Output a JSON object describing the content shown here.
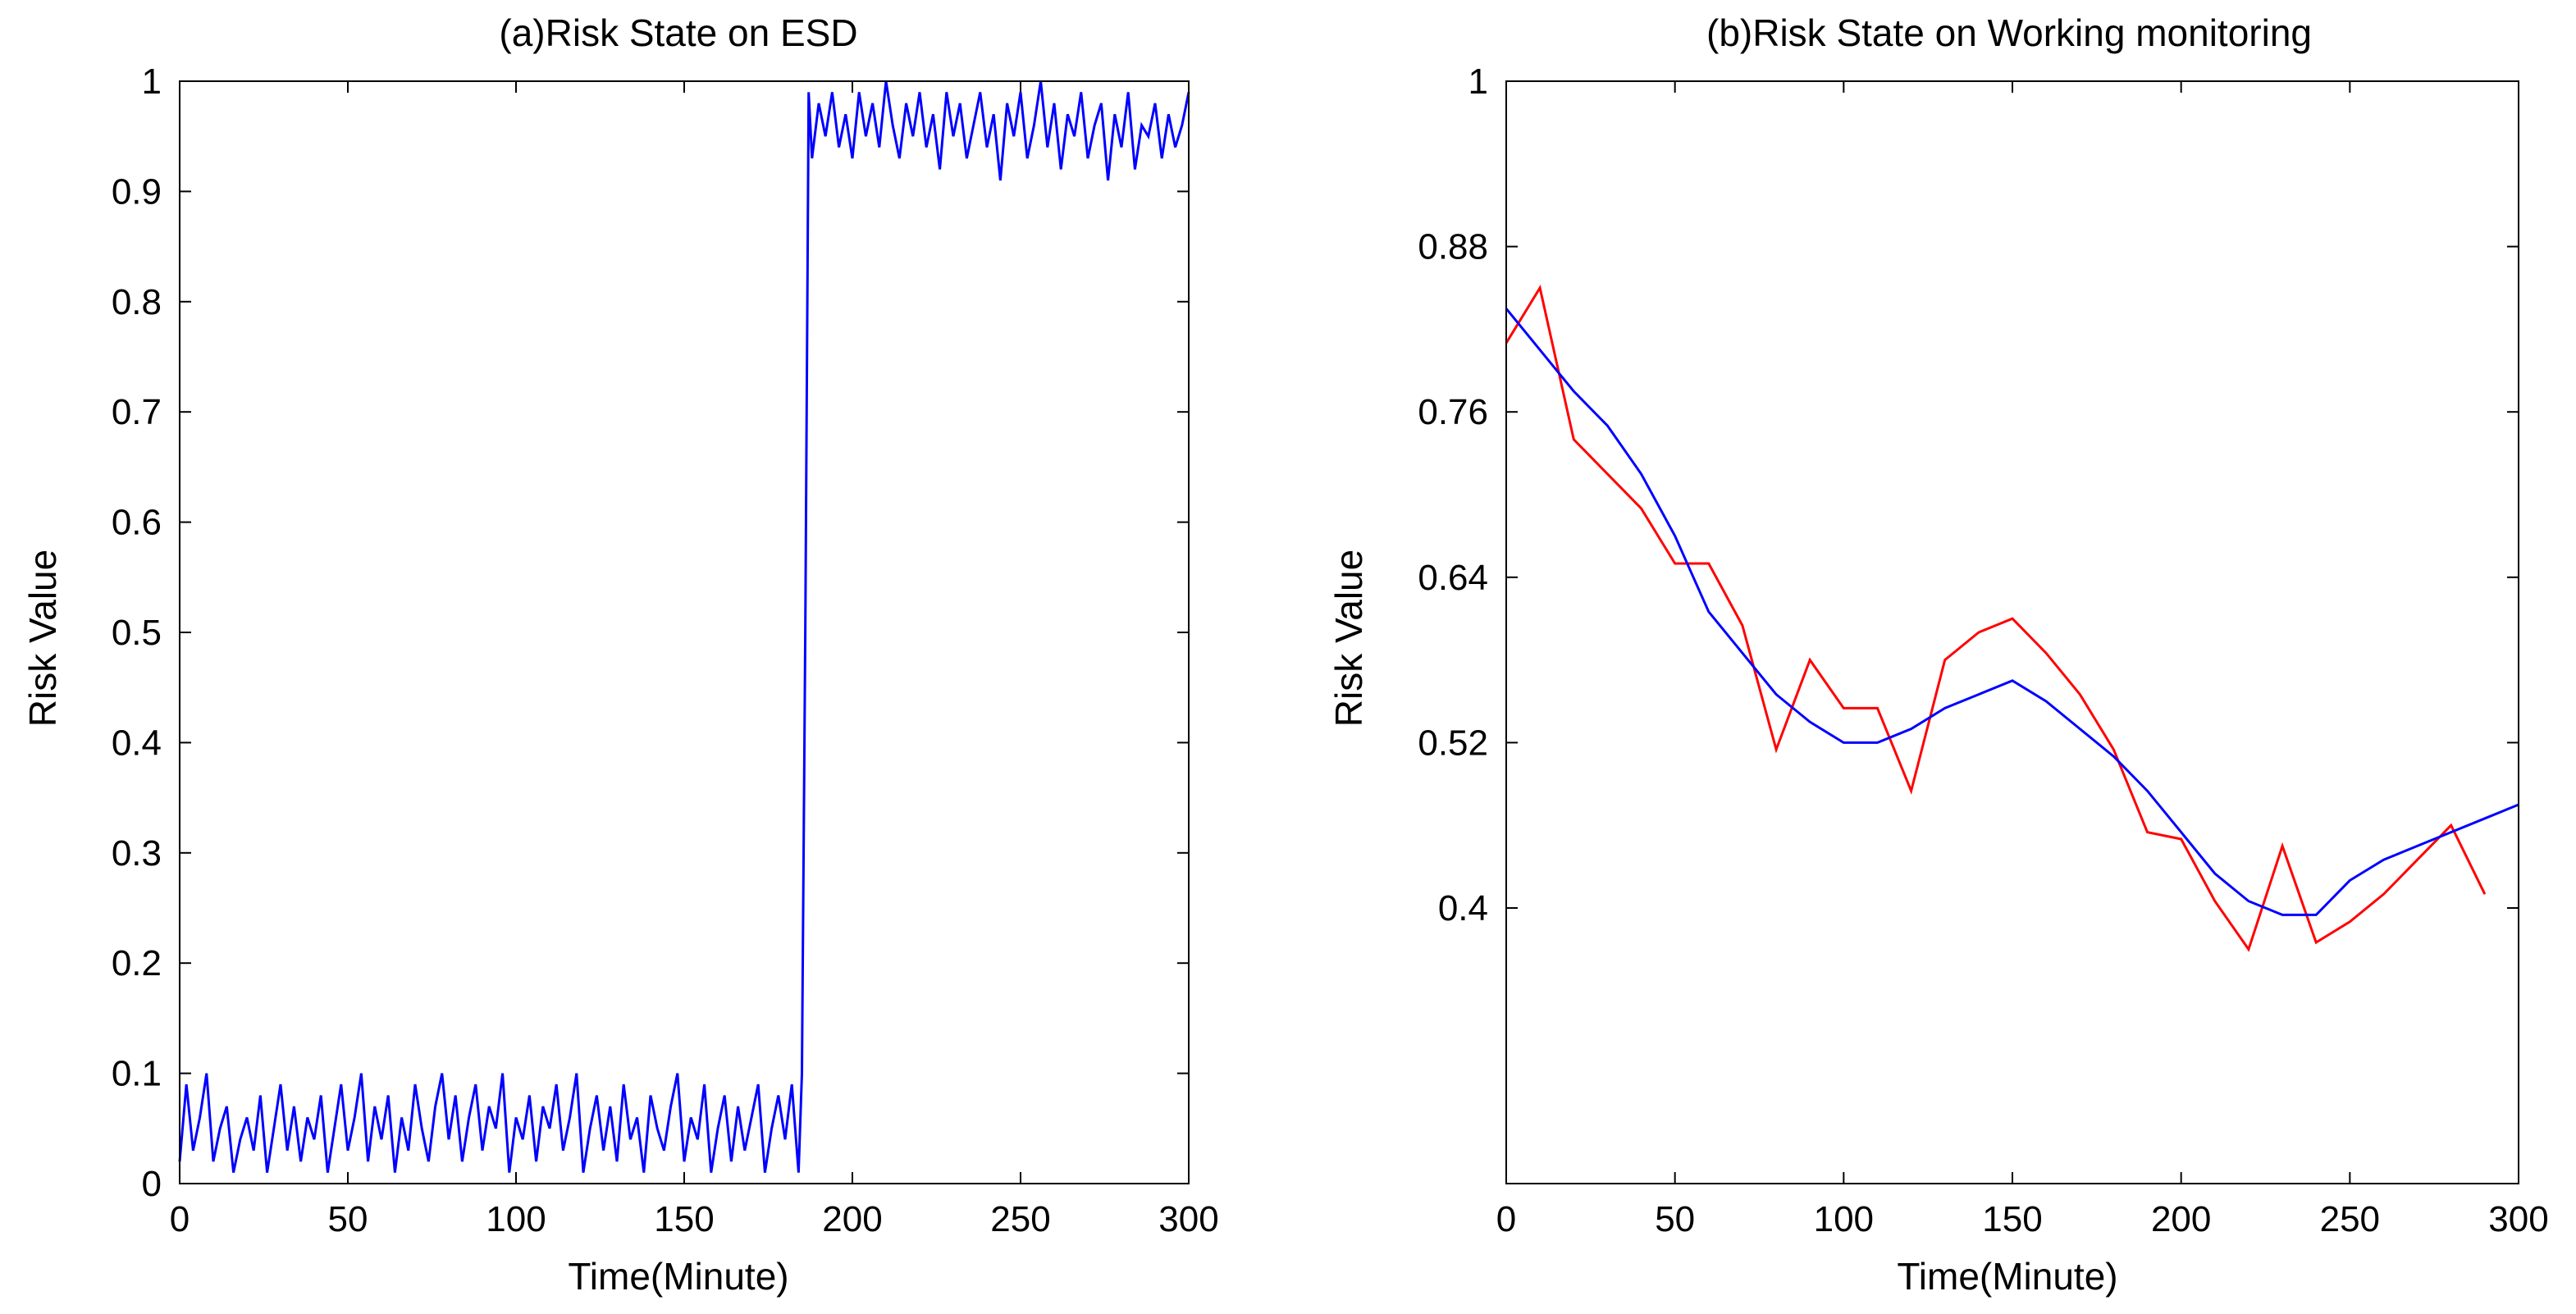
{
  "chart_data": [
    {
      "type": "line",
      "title": "(a)Risk State on ESD",
      "xlabel": "Time(Minute)",
      "ylabel": "Risk Value",
      "xlim": [
        0,
        300
      ],
      "ylim": [
        0,
        1
      ],
      "xticks": [
        0,
        50,
        100,
        150,
        200,
        250,
        300
      ],
      "yticks": [
        0,
        0.1,
        0.2,
        0.3,
        0.4,
        0.5,
        0.6,
        0.7,
        0.8,
        0.9,
        1
      ],
      "xtick_labels": [
        "0",
        "50",
        "100",
        "150",
        "200",
        "250",
        "300"
      ],
      "ytick_labels": [
        "0",
        "0.1",
        "0.2",
        "0.3",
        "0.4",
        "0.5",
        "0.6",
        "0.7",
        "0.8",
        "0.9",
        "1"
      ],
      "grid": false,
      "series": [
        {
          "color": "#0000ff",
          "x": [
            0,
            2,
            4,
            6,
            8,
            10,
            12,
            14,
            16,
            18,
            20,
            22,
            24,
            26,
            28,
            30,
            32,
            34,
            36,
            38,
            40,
            42,
            44,
            46,
            48,
            50,
            52,
            54,
            56,
            58,
            60,
            62,
            64,
            66,
            68,
            70,
            72,
            74,
            76,
            78,
            80,
            82,
            84,
            86,
            88,
            90,
            92,
            94,
            96,
            98,
            100,
            102,
            104,
            106,
            108,
            110,
            112,
            114,
            116,
            118,
            120,
            122,
            124,
            126,
            128,
            130,
            132,
            134,
            136,
            138,
            140,
            142,
            144,
            146,
            148,
            150,
            152,
            154,
            156,
            158,
            160,
            162,
            164,
            166,
            168,
            170,
            172,
            174,
            176,
            178,
            180,
            182,
            184,
            185,
            186,
            187,
            188,
            190,
            192,
            194,
            196,
            198,
            200,
            202,
            204,
            206,
            208,
            210,
            212,
            214,
            216,
            218,
            220,
            222,
            224,
            226,
            228,
            230,
            232,
            234,
            236,
            238,
            240,
            242,
            244,
            246,
            248,
            250,
            252,
            254,
            256,
            258,
            260,
            262,
            264,
            266,
            268,
            270,
            272,
            274,
            276,
            278,
            280,
            282,
            284,
            286,
            288,
            290,
            292,
            294,
            296,
            298,
            300
          ],
          "y": [
            0.02,
            0.09,
            0.03,
            0.06,
            0.1,
            0.02,
            0.05,
            0.07,
            0.01,
            0.04,
            0.06,
            0.03,
            0.08,
            0.01,
            0.05,
            0.09,
            0.03,
            0.07,
            0.02,
            0.06,
            0.04,
            0.08,
            0.01,
            0.05,
            0.09,
            0.03,
            0.06,
            0.1,
            0.02,
            0.07,
            0.04,
            0.08,
            0.01,
            0.06,
            0.03,
            0.09,
            0.05,
            0.02,
            0.07,
            0.1,
            0.04,
            0.08,
            0.02,
            0.06,
            0.09,
            0.03,
            0.07,
            0.05,
            0.1,
            0.01,
            0.06,
            0.04,
            0.08,
            0.02,
            0.07,
            0.05,
            0.09,
            0.03,
            0.06,
            0.1,
            0.01,
            0.05,
            0.08,
            0.03,
            0.07,
            0.02,
            0.09,
            0.04,
            0.06,
            0.01,
            0.08,
            0.05,
            0.03,
            0.07,
            0.1,
            0.02,
            0.06,
            0.04,
            0.09,
            0.01,
            0.05,
            0.08,
            0.02,
            0.07,
            0.03,
            0.06,
            0.09,
            0.01,
            0.05,
            0.08,
            0.04,
            0.09,
            0.01,
            0.1,
            0.5,
            0.99,
            0.93,
            0.98,
            0.95,
            0.99,
            0.94,
            0.97,
            0.93,
            0.99,
            0.95,
            0.98,
            0.94,
            1.0,
            0.96,
            0.93,
            0.98,
            0.95,
            0.99,
            0.94,
            0.97,
            0.92,
            0.99,
            0.95,
            0.98,
            0.93,
            0.96,
            0.99,
            0.94,
            0.97,
            0.91,
            0.98,
            0.95,
            0.99,
            0.93,
            0.96,
            1.0,
            0.94,
            0.98,
            0.92,
            0.97,
            0.95,
            0.99,
            0.93,
            0.96,
            0.98,
            0.91,
            0.97,
            0.94,
            0.99,
            0.92,
            0.96,
            0.95,
            0.98,
            0.93,
            0.97,
            0.94,
            0.96,
            0.99
          ]
        }
      ]
    },
    {
      "type": "line",
      "title": "(b)Risk State on Working monitoring",
      "xlabel": "Time(Minute)",
      "ylabel": "Risk Value",
      "xlim": [
        0,
        300
      ],
      "ylim": [
        0.2,
        1
      ],
      "xticks": [
        0,
        50,
        100,
        150,
        200,
        250,
        300
      ],
      "yticks": [
        0.4,
        0.52,
        0.64,
        0.76,
        0.88,
        1
      ],
      "xtick_labels": [
        "0",
        "50",
        "100",
        "150",
        "200",
        "250",
        "300"
      ],
      "ytick_labels": [
        "0.4",
        "0.52",
        "0.64",
        "0.76",
        "0.88",
        "1"
      ],
      "grid": false,
      "series": [
        {
          "color": "#ff0000",
          "x": [
            0,
            10,
            20,
            30,
            40,
            50,
            60,
            70,
            80,
            90,
            100,
            110,
            120,
            130,
            140,
            150,
            160,
            170,
            180,
            190,
            200,
            210,
            220,
            230,
            240,
            250,
            260,
            270,
            280,
            290
          ],
          "y": [
            0.81,
            0.85,
            0.74,
            0.715,
            0.69,
            0.65,
            0.65,
            0.605,
            0.515,
            0.58,
            0.545,
            0.545,
            0.485,
            0.58,
            0.6,
            0.61,
            0.585,
            0.555,
            0.515,
            0.455,
            0.45,
            0.405,
            0.37,
            0.445,
            0.375,
            0.39,
            0.41,
            0.435,
            0.46,
            0.41
          ]
        },
        {
          "color": "#0000ff",
          "x": [
            0,
            10,
            20,
            30,
            40,
            50,
            60,
            70,
            80,
            90,
            100,
            110,
            120,
            130,
            140,
            150,
            160,
            170,
            180,
            190,
            200,
            210,
            220,
            230,
            240,
            250,
            260,
            270,
            280,
            290,
            300
          ],
          "y": [
            0.835,
            0.805,
            0.775,
            0.75,
            0.715,
            0.67,
            0.615,
            0.585,
            0.555,
            0.535,
            0.52,
            0.52,
            0.53,
            0.545,
            0.555,
            0.565,
            0.55,
            0.53,
            0.51,
            0.485,
            0.455,
            0.425,
            0.405,
            0.395,
            0.395,
            0.42,
            0.435,
            0.445,
            0.455,
            0.465,
            0.475
          ]
        }
      ]
    }
  ]
}
